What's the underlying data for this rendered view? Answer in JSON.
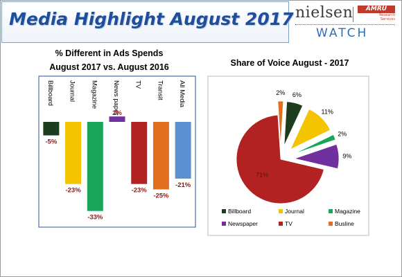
{
  "header": {
    "title": "Media Highlight August 2017",
    "logo_nielsen": "nielsen",
    "logo_amru": "AMRU",
    "logo_amru_sub": "Research Services",
    "logo_watch": "WATCH"
  },
  "chart_data": [
    {
      "type": "bar",
      "title": "% Different in Ads Spends",
      "subtitle": "August 2017 vs. August 2016",
      "categories": [
        "Billboard",
        "Journal",
        "Magazine",
        "News paper",
        "TV",
        "Transit",
        "All Media"
      ],
      "values": [
        -5,
        -23,
        -33,
        2,
        -23,
        -25,
        -21
      ],
      "value_labels": [
        "-5%",
        "-23%",
        "-33%",
        "2%",
        "-23%",
        "-25%",
        "-21%"
      ],
      "colors": [
        "#1e3d1e",
        "#f5c400",
        "#1aa55a",
        "#7030a0",
        "#b22222",
        "#e07020",
        "#5b8fd0"
      ],
      "ylim": [
        -35,
        10
      ],
      "grid": false
    },
    {
      "type": "pie",
      "title": "Share of Voice August - 2017",
      "categories": [
        "Billboard",
        "Journal",
        "Magazine",
        "Newspaper",
        "TV",
        "Busline"
      ],
      "values": [
        6,
        11,
        2,
        9,
        71,
        2
      ],
      "value_labels": [
        "6%",
        "11%",
        "2%",
        "9%",
        "71%",
        "2%"
      ],
      "colors": [
        "#1e3d1e",
        "#f5c400",
        "#1aa55a",
        "#7030a0",
        "#b22222",
        "#e07020"
      ],
      "legend_position": "bottom"
    }
  ]
}
